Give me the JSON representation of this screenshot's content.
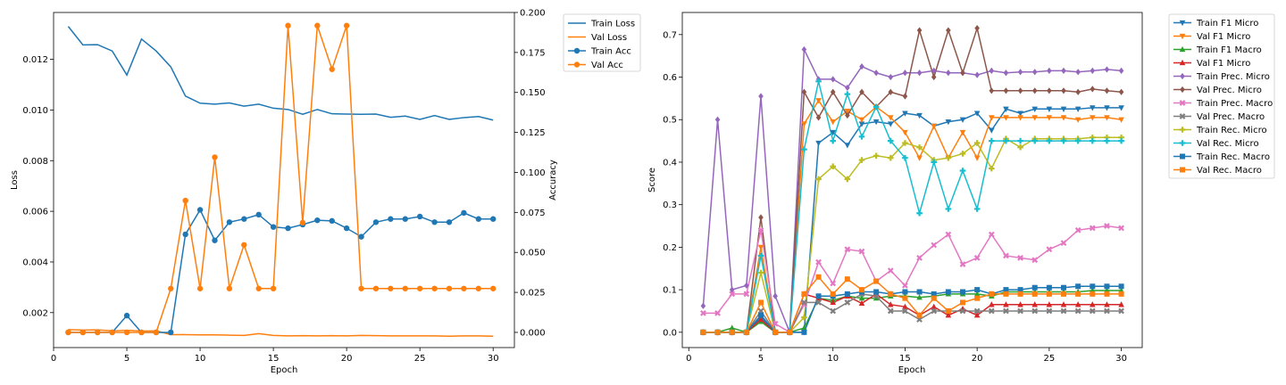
{
  "chart_data": [
    {
      "type": "line",
      "xlabel": "Epoch",
      "ylabel_left": "Loss",
      "ylabel_right": "Accuracy",
      "xlim": [
        0.0,
        31.45
      ],
      "ylim_left": [
        0.00062,
        0.01385
      ],
      "ylim_right": [
        -0.0095,
        0.2
      ],
      "x_ticks": [
        0,
        5,
        10,
        15,
        20,
        25,
        30
      ],
      "y_ticks_left": [
        0.002,
        0.004,
        0.006,
        0.008,
        0.01,
        0.012
      ],
      "y_tick_labels_left": [
        "0.002",
        "0.004",
        "0.006",
        "0.008",
        "0.010",
        "0.012"
      ],
      "y_ticks_right": [
        0.0,
        0.025,
        0.05,
        0.075,
        0.1,
        0.125,
        0.15,
        0.175,
        0.2
      ],
      "y_tick_labels_right": [
        "0.000",
        "0.025",
        "0.050",
        "0.075",
        "0.100",
        "0.125",
        "0.150",
        "0.175",
        "0.200"
      ],
      "legend_position": "outside-upper-right",
      "x": [
        1,
        2,
        3,
        4,
        5,
        6,
        7,
        8,
        9,
        10,
        11,
        12,
        13,
        14,
        15,
        16,
        17,
        18,
        19,
        20,
        21,
        22,
        23,
        24,
        25,
        26,
        27,
        28,
        29,
        30
      ],
      "series": [
        {
          "name": "Train Loss",
          "axis": "left",
          "color": "#1f77b4",
          "marker": "none",
          "values": [
            0.0133,
            0.01257,
            0.01258,
            0.01233,
            0.01138,
            0.0128,
            0.01233,
            0.0117,
            0.01055,
            0.01027,
            0.01023,
            0.01028,
            0.01015,
            0.01023,
            0.01007,
            0.01002,
            0.00983,
            0.01002,
            0.00985,
            0.00984,
            0.00983,
            0.00984,
            0.00971,
            0.00976,
            0.00963,
            0.00978,
            0.00963,
            0.0097,
            0.00974,
            0.0096
          ]
        },
        {
          "name": "Val Loss",
          "axis": "left",
          "color": "#ff7f0e",
          "marker": "none",
          "values": [
            0.00133,
            0.00131,
            0.00132,
            0.00128,
            0.0013,
            0.00127,
            0.00128,
            0.00113,
            0.00113,
            0.00112,
            0.00112,
            0.00111,
            0.0011,
            0.00117,
            0.0011,
            0.00108,
            0.00109,
            0.00108,
            0.00109,
            0.00108,
            0.0011,
            0.00109,
            0.00108,
            0.00108,
            0.00108,
            0.00108,
            0.00107,
            0.00108,
            0.00108,
            0.00107
          ]
        },
        {
          "name": "Train Acc",
          "axis": "right",
          "color": "#1f77b4",
          "marker": "circle",
          "values": [
            0.0,
            0.0,
            0.0,
            0.0,
            0.0105,
            0.0,
            0.0,
            0.0,
            0.0613,
            0.0766,
            0.0575,
            0.0689,
            0.0709,
            0.0736,
            0.0659,
            0.0651,
            0.0674,
            0.0701,
            0.0697,
            0.0651,
            0.0598,
            0.0689,
            0.0709,
            0.0709,
            0.0724,
            0.0689,
            0.0689,
            0.0747,
            0.0709,
            0.0709
          ]
        },
        {
          "name": "Val Acc",
          "axis": "right",
          "color": "#ff7f0e",
          "marker": "circle",
          "values": [
            0.0,
            0.0,
            0.0,
            0.0,
            0.0,
            0.0,
            0.0,
            0.0274,
            0.0824,
            0.0274,
            0.1095,
            0.0274,
            0.0547,
            0.0274,
            0.0274,
            0.1918,
            0.0686,
            0.1918,
            0.1645,
            0.1918,
            0.0274,
            0.0274,
            0.0274,
            0.0274,
            0.0274,
            0.0274,
            0.0274,
            0.0274,
            0.0274,
            0.0274
          ]
        }
      ]
    },
    {
      "type": "line",
      "xlabel": "Epoch",
      "ylabel": "Score",
      "xlim": [
        -0.45,
        31.45
      ],
      "ylim": [
        -0.036,
        0.752
      ],
      "x_ticks": [
        0,
        5,
        10,
        15,
        20,
        25,
        30
      ],
      "y_ticks": [
        0.0,
        0.1,
        0.2,
        0.3,
        0.4,
        0.5,
        0.6,
        0.7
      ],
      "y_tick_labels": [
        "0.0",
        "0.1",
        "0.2",
        "0.3",
        "0.4",
        "0.5",
        "0.6",
        "0.7"
      ],
      "legend_position": "outside-upper-right",
      "x": [
        1,
        2,
        3,
        4,
        5,
        6,
        7,
        8,
        9,
        10,
        11,
        12,
        13,
        14,
        15,
        16,
        17,
        18,
        19,
        20,
        21,
        22,
        23,
        24,
        25,
        26,
        27,
        28,
        29,
        30
      ],
      "series": [
        {
          "name": "Train F1 Micro",
          "color": "#1f77b4",
          "marker": "triangle-down",
          "values": [
            0.0,
            0.0,
            0.0,
            0.0,
            0.035,
            0.0,
            0.0,
            0.0,
            0.445,
            0.47,
            0.44,
            0.49,
            0.495,
            0.49,
            0.515,
            0.51,
            0.485,
            0.495,
            0.5,
            0.515,
            0.475,
            0.525,
            0.515,
            0.525,
            0.525,
            0.525,
            0.525,
            0.528,
            0.528,
            0.528
          ]
        },
        {
          "name": "Val F1 Micro",
          "color": "#ff7f0e",
          "marker": "triangle-down",
          "values": [
            0.0,
            0.0,
            0.0,
            0.0,
            0.2,
            0.0,
            0.0,
            0.49,
            0.545,
            0.495,
            0.52,
            0.5,
            0.53,
            0.505,
            0.47,
            0.41,
            0.485,
            0.41,
            0.47,
            0.41,
            0.505,
            0.505,
            0.505,
            0.505,
            0.505,
            0.505,
            0.5,
            0.505,
            0.505,
            0.5
          ]
        },
        {
          "name": "Train F1 Macro",
          "color": "#2ca02c",
          "marker": "triangle-up",
          "values": [
            0.0,
            0.0,
            0.01,
            0.0,
            0.025,
            0.0,
            0.0,
            0.01,
            0.08,
            0.075,
            0.085,
            0.08,
            0.08,
            0.085,
            0.085,
            0.082,
            0.085,
            0.09,
            0.09,
            0.09,
            0.085,
            0.095,
            0.095,
            0.095,
            0.095,
            0.095,
            0.095,
            0.098,
            0.098,
            0.098
          ]
        },
        {
          "name": "Val F1 Micro",
          "color": "#d62728",
          "marker": "triangle-up",
          "values": [
            0.0,
            0.0,
            0.0,
            0.0,
            0.03,
            0.0,
            0.0,
            0.09,
            0.08,
            0.07,
            0.085,
            0.068,
            0.09,
            0.065,
            0.06,
            0.04,
            0.06,
            0.04,
            0.055,
            0.04,
            0.065,
            0.065,
            0.065,
            0.065,
            0.065,
            0.065,
            0.065,
            0.065,
            0.065,
            0.065
          ]
        },
        {
          "name": "Train Prec. Micro",
          "color": "#9467bd",
          "marker": "diamond",
          "values": [
            0.062,
            0.5,
            0.1,
            0.11,
            0.555,
            0.085,
            0.0,
            0.665,
            0.595,
            0.595,
            0.575,
            0.625,
            0.61,
            0.6,
            0.61,
            0.61,
            0.615,
            0.61,
            0.61,
            0.605,
            0.615,
            0.61,
            0.612,
            0.612,
            0.615,
            0.615,
            0.612,
            0.615,
            0.618,
            0.615
          ]
        },
        {
          "name": "Val Prec. Micro",
          "color": "#8c564b",
          "marker": "diamond",
          "values": [
            0.0,
            0.0,
            0.0,
            0.0,
            0.27,
            0.0,
            0.0,
            0.565,
            0.505,
            0.565,
            0.51,
            0.565,
            0.53,
            0.565,
            0.555,
            0.71,
            0.6,
            0.71,
            0.61,
            0.715,
            0.568,
            0.568,
            0.568,
            0.568,
            0.568,
            0.568,
            0.565,
            0.572,
            0.568,
            0.565
          ]
        },
        {
          "name": "Train Prec. Macro",
          "color": "#e377c2",
          "marker": "x",
          "values": [
            0.045,
            0.045,
            0.09,
            0.09,
            0.24,
            0.02,
            0.0,
            0.065,
            0.165,
            0.115,
            0.195,
            0.19,
            0.12,
            0.145,
            0.11,
            0.175,
            0.205,
            0.23,
            0.16,
            0.175,
            0.23,
            0.18,
            0.175,
            0.17,
            0.195,
            0.21,
            0.24,
            0.245,
            0.25,
            0.245
          ]
        },
        {
          "name": "Val Prec. Macro",
          "color": "#7f7f7f",
          "marker": "x",
          "values": [
            0.0,
            0.0,
            0.0,
            0.0,
            0.05,
            0.0,
            0.0,
            0.07,
            0.07,
            0.05,
            0.07,
            0.09,
            0.085,
            0.05,
            0.05,
            0.03,
            0.05,
            0.05,
            0.05,
            0.05,
            0.05,
            0.05,
            0.05,
            0.05,
            0.05,
            0.05,
            0.05,
            0.05,
            0.05,
            0.05
          ]
        },
        {
          "name": "Train Rec. Micro",
          "color": "#bcbd22",
          "marker": "plus",
          "values": [
            0.0,
            0.0,
            0.0,
            0.0,
            0.14,
            0.0,
            0.0,
            0.035,
            0.36,
            0.39,
            0.36,
            0.405,
            0.415,
            0.41,
            0.445,
            0.435,
            0.405,
            0.41,
            0.42,
            0.445,
            0.385,
            0.455,
            0.435,
            0.455,
            0.455,
            0.455,
            0.455,
            0.458,
            0.458,
            0.458
          ]
        },
        {
          "name": "Val Rec. Micro",
          "color": "#17becf",
          "marker": "plus",
          "values": [
            0.0,
            0.0,
            0.0,
            0.0,
            0.18,
            0.0,
            0.0,
            0.43,
            0.59,
            0.45,
            0.56,
            0.46,
            0.53,
            0.45,
            0.41,
            0.28,
            0.4,
            0.29,
            0.38,
            0.29,
            0.45,
            0.45,
            0.45,
            0.45,
            0.45,
            0.45,
            0.45,
            0.45,
            0.45,
            0.45
          ]
        },
        {
          "name": "Train Rec. Macro",
          "color": "#1f77b4",
          "marker": "square",
          "values": [
            0.0,
            0.0,
            0.0,
            0.0,
            0.04,
            0.0,
            0.0,
            0.0,
            0.085,
            0.085,
            0.09,
            0.095,
            0.095,
            0.09,
            0.095,
            0.095,
            0.09,
            0.095,
            0.095,
            0.1,
            0.09,
            0.1,
            0.1,
            0.105,
            0.105,
            0.105,
            0.108,
            0.108,
            0.108,
            0.108
          ]
        },
        {
          "name": "Val Rec. Macro",
          "color": "#ff7f0e",
          "marker": "square",
          "values": [
            0.0,
            0.0,
            0.0,
            0.0,
            0.07,
            0.0,
            0.0,
            0.09,
            0.13,
            0.09,
            0.125,
            0.1,
            0.12,
            0.09,
            0.08,
            0.04,
            0.08,
            0.05,
            0.07,
            0.08,
            0.09,
            0.09,
            0.09,
            0.09,
            0.09,
            0.09,
            0.09,
            0.09,
            0.09,
            0.09
          ]
        }
      ]
    }
  ]
}
